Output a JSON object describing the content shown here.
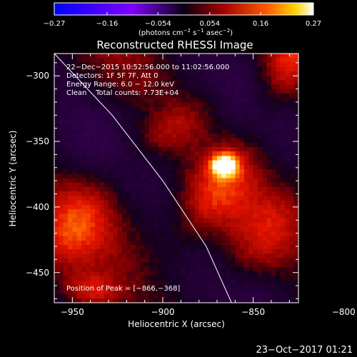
{
  "chart_data": {
    "type": "heatmap",
    "title": "Reconstructed RHESSI Image",
    "xlabel": "Heliocentric X (arcsec)",
    "ylabel": "Heliocentric Y (arcsec)",
    "xlim": [
      -960,
      -825
    ],
    "ylim": [
      -473,
      -283
    ],
    "x_ticks": [
      -950,
      -900,
      -850,
      -800
    ],
    "x_tick_labels": [
      "−950",
      "−900",
      "−850",
      "−800"
    ],
    "y_ticks": [
      -300,
      -350,
      -400,
      -450
    ],
    "y_tick_labels": [
      "−300",
      "−350",
      "−400",
      "−450"
    ],
    "colorbar": {
      "range": [
        -0.27,
        0.27
      ],
      "ticks": [
        -0.27,
        -0.16,
        -0.054,
        0.054,
        0.16,
        0.27
      ],
      "tick_labels": [
        "−0.27",
        "−0.16",
        "−0.054",
        "0.054",
        "0.16",
        "0.27"
      ],
      "unit_label_base": "(photons cm",
      "unit_sup1": "−2",
      "unit_mid1": " s",
      "unit_sup2": "−1",
      "unit_mid2": " asec",
      "unit_sup3": "−2",
      "unit_end": ")"
    },
    "annotations": [
      "22−Dec−2015 10:52:56.000 to 11:02:56.000",
      "Detectors: 1F 5F 7F, Att 0",
      "Energy Range: 6.0 − 12.0 keV",
      "Clean    Total counts: 7.73E+04"
    ],
    "peak_label": "Position of Peak = [−866,−368]",
    "peak": {
      "x": -866,
      "y": -368,
      "value": 0.27
    },
    "grid": false,
    "limb_line": [
      [
        -960,
        -283
      ],
      [
        -928,
        -330
      ],
      [
        -900,
        -380
      ],
      [
        -876,
        -430
      ],
      [
        -862,
        -473
      ]
    ],
    "sources": [
      {
        "x": -866,
        "y": -368,
        "amp": 0.27,
        "sx": 5,
        "sy": 6
      },
      {
        "x": -870,
        "y": -388,
        "amp": 0.11,
        "sx": 12,
        "sy": 30,
        "rot": 0.4
      },
      {
        "x": -845,
        "y": -425,
        "amp": 0.09,
        "sx": 14,
        "sy": 30,
        "rot": 0.5
      },
      {
        "x": -950,
        "y": -415,
        "amp": 0.12,
        "sx": 14,
        "sy": 28,
        "rot": 0.4
      },
      {
        "x": -830,
        "y": -290,
        "amp": 0.12,
        "sx": 10,
        "sy": 25,
        "rot": 0.3
      },
      {
        "x": -895,
        "y": -340,
        "amp": 0.07,
        "sx": 10,
        "sy": 22,
        "rot": 0.8
      },
      {
        "x": -940,
        "y": -465,
        "amp": 0.13,
        "sx": 12,
        "sy": 10,
        "rot": 0.2
      }
    ]
  },
  "footer": {
    "timestamp": "23−Oct−2017 01:21"
  }
}
